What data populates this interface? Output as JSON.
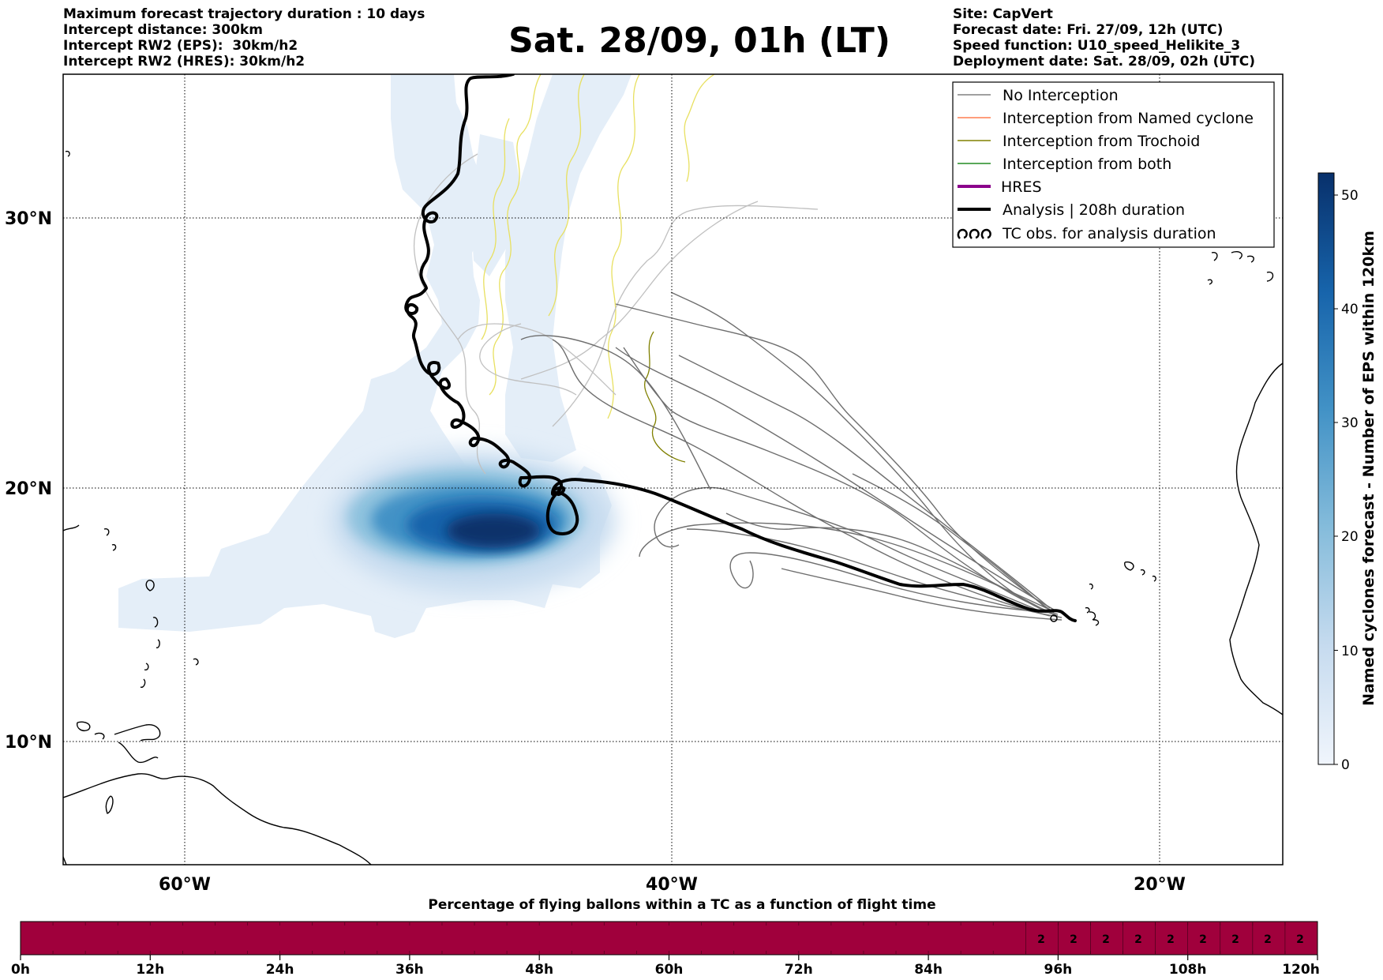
{
  "header_left": [
    "Maximum forecast trajectory duration : 10 days",
    "Intercept distance: 300km",
    "Intercept RW2 (EPS):  30km/h2",
    "Intercept RW2 (HRES): 30km/h2"
  ],
  "header_right": [
    "Site: CapVert",
    "Forecast date: Fri. 27/09, 12h (UTC)",
    "Speed function: U10_speed_Helikite_3",
    "Deployment date: Sat. 28/09, 02h (UTC)"
  ],
  "title": "Sat. 28/09, 01h (LT)",
  "map": {
    "lat_labels": [
      "30°N",
      "20°N",
      "10°N"
    ],
    "lon_labels": [
      "60°W",
      "40°W",
      "20°W"
    ]
  },
  "legend": [
    {
      "label": "No Interception",
      "color": "#808080",
      "icon": "thin-line"
    },
    {
      "label": "Interception from Named cyclone",
      "color": "#ff7f50",
      "icon": "thin-line"
    },
    {
      "label": "Interception from Trochoid",
      "color": "#808000",
      "icon": "thin-line"
    },
    {
      "label": "Interception from both",
      "color": "#228b22",
      "icon": "thin-line"
    },
    {
      "label": "HRES",
      "color": "#8b008b",
      "icon": "thick-line"
    },
    {
      "label": "Analysis | 208h duration",
      "color": "#000000",
      "icon": "thick-line"
    },
    {
      "label": "TC obs. for analysis duration",
      "color": "#000000",
      "icon": "loop-glyph"
    }
  ],
  "colorbar": {
    "label": "Named cyclones forecast - Number of EPS within 120km",
    "ticks": [
      "0",
      "10",
      "20",
      "30",
      "40",
      "50"
    ],
    "color_low": "#f0f5fc",
    "color_high": "#08306b"
  },
  "timebar": {
    "title": "Percentage of flying ballons within a TC as a function of flight time",
    "tick_labels": [
      "0h",
      "12h",
      "24h",
      "36h",
      "48h",
      "60h",
      "72h",
      "84h",
      "96h",
      "108h",
      "120h"
    ],
    "cell_values": [
      "2",
      "2",
      "2",
      "2",
      "2",
      "2",
      "2",
      "2",
      "2"
    ],
    "bar_color": "#a0003c"
  }
}
